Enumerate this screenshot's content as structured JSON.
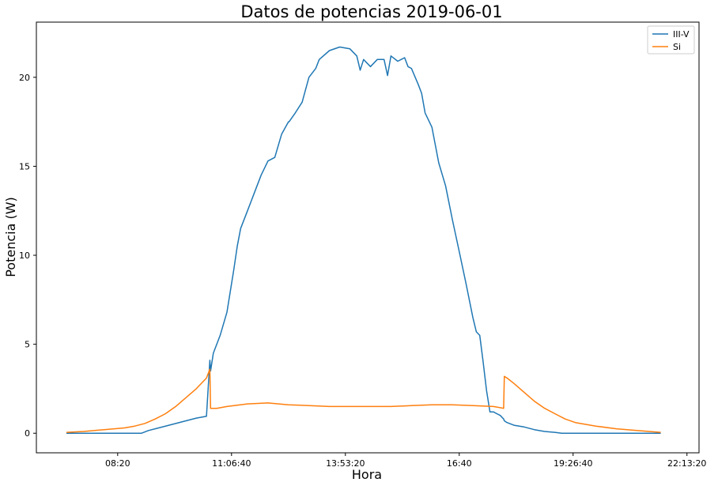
{
  "chart_data": {
    "type": "line",
    "title": "Datos de potencias 2019-06-01",
    "xlabel": "Hora",
    "ylabel": "Potencia (W)",
    "x_unit": "time of day",
    "xlim": [
      "06:21:00",
      "22:31:00"
    ],
    "ylim": [
      -1.1,
      23.1
    ],
    "xticks": [
      "08:20",
      "11:06:40",
      "13:53:20",
      "16:40",
      "19:26:40",
      "22:13:20"
    ],
    "yticks": [
      0,
      5,
      10,
      15,
      20
    ],
    "legend": {
      "position": "top-right"
    },
    "grid": false,
    "series": [
      {
        "name": "III-V",
        "color": "#1f77b4",
        "x": [
          "07:05",
          "07:30",
          "08:00",
          "08:30",
          "08:55",
          "09:05",
          "09:20",
          "09:40",
          "10:00",
          "10:15",
          "10:30",
          "10:35",
          "10:36",
          "10:40",
          "10:50",
          "11:00",
          "11:10",
          "11:15",
          "11:20",
          "11:30",
          "11:40",
          "11:50",
          "12:00",
          "12:10",
          "12:20",
          "12:30",
          "12:31",
          "12:40",
          "12:50",
          "13:00",
          "13:10",
          "13:15",
          "13:30",
          "13:45",
          "14:00",
          "14:10",
          "14:15",
          "14:20",
          "14:30",
          "14:40",
          "14:50",
          "14:55",
          "15:00",
          "15:10",
          "15:20",
          "15:25",
          "15:30",
          "15:40",
          "15:45",
          "15:50",
          "16:00",
          "16:05",
          "16:10",
          "16:20",
          "16:30",
          "16:40",
          "16:50",
          "17:00",
          "17:05",
          "17:10",
          "17:15",
          "17:20",
          "17:25",
          "17:30",
          "17:35",
          "17:40",
          "17:45",
          "17:46",
          "17:50",
          "18:00",
          "18:15",
          "18:30",
          "18:45",
          "19:00",
          "19:10",
          "20:00",
          "20:30",
          "21:00",
          "21:35"
        ],
        "values": [
          0,
          0,
          0,
          0,
          0,
          0.15,
          0.3,
          0.5,
          0.7,
          0.85,
          0.95,
          4.1,
          3.5,
          4.5,
          5.5,
          6.8,
          9.2,
          10.5,
          11.5,
          12.5,
          13.5,
          14.5,
          15.3,
          15.5,
          16.8,
          17.5,
          17.5,
          18.0,
          18.6,
          20.0,
          20.5,
          21.0,
          21.5,
          21.7,
          21.6,
          21.2,
          20.4,
          21.0,
          20.6,
          21.0,
          21.0,
          20.1,
          21.2,
          20.9,
          21.1,
          20.6,
          20.5,
          19.6,
          19.1,
          18.0,
          17.2,
          16.2,
          15.2,
          13.9,
          12.0,
          10.2,
          8.4,
          6.5,
          5.7,
          5.5,
          4.0,
          2.4,
          1.2,
          1.2,
          1.1,
          1.0,
          0.8,
          0.7,
          0.6,
          0.45,
          0.35,
          0.2,
          0.1,
          0.05,
          0,
          0,
          0,
          0,
          0
        ]
      },
      {
        "name": "Si",
        "color": "#ff7f0e",
        "x": [
          "07:05",
          "07:30",
          "08:00",
          "08:30",
          "08:45",
          "09:00",
          "09:15",
          "09:30",
          "09:45",
          "10:00",
          "10:15",
          "10:30",
          "10:35",
          "10:36",
          "10:45",
          "11:00",
          "11:30",
          "12:00",
          "12:30",
          "13:00",
          "13:30",
          "14:00",
          "14:30",
          "15:00",
          "15:30",
          "16:00",
          "16:30",
          "17:00",
          "17:30",
          "17:45",
          "17:46",
          "17:50",
          "18:00",
          "18:15",
          "18:30",
          "18:45",
          "19:00",
          "19:15",
          "19:30",
          "19:45",
          "20:00",
          "20:30",
          "21:00",
          "21:35"
        ],
        "values": [
          0.05,
          0.1,
          0.2,
          0.3,
          0.4,
          0.55,
          0.8,
          1.1,
          1.5,
          2.0,
          2.5,
          3.1,
          3.6,
          1.4,
          1.4,
          1.5,
          1.65,
          1.7,
          1.6,
          1.55,
          1.5,
          1.5,
          1.5,
          1.5,
          1.55,
          1.6,
          1.6,
          1.55,
          1.5,
          1.4,
          3.2,
          3.1,
          2.8,
          2.3,
          1.8,
          1.4,
          1.1,
          0.8,
          0.6,
          0.5,
          0.4,
          0.25,
          0.15,
          0.05
        ]
      }
    ]
  }
}
